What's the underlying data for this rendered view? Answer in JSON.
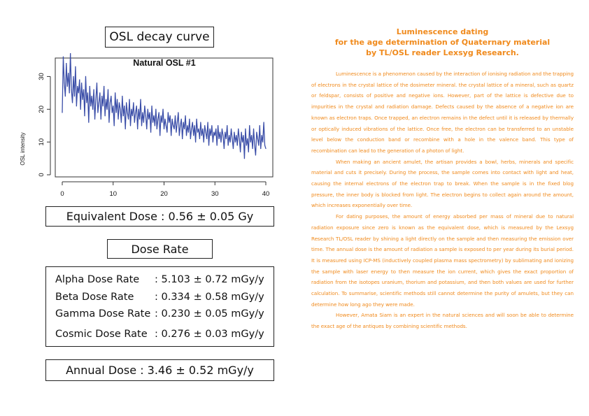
{
  "chart_box_title": "OSL decay curve",
  "chart_data": {
    "type": "line",
    "title": "Natural OSL #1",
    "xlabel": "",
    "ylabel": "OSL intensity",
    "xlim": [
      0,
      40
    ],
    "ylim": [
      0,
      35
    ],
    "xticks": [
      0,
      10,
      20,
      30,
      40
    ],
    "yticks": [
      0,
      10,
      20,
      30
    ],
    "grid": false,
    "series": [
      {
        "color": "#3b4ea8",
        "x": [
          0.0,
          0.2,
          0.4,
          0.6,
          0.8,
          1.0,
          1.2,
          1.4,
          1.6,
          1.8,
          2.0,
          2.2,
          2.4,
          2.6,
          2.8,
          3.0,
          3.2,
          3.4,
          3.6,
          3.8,
          4.0,
          4.2,
          4.4,
          4.6,
          4.8,
          5.0,
          5.2,
          5.4,
          5.6,
          5.8,
          6.0,
          6.2,
          6.4,
          6.6,
          6.8,
          7.0,
          7.2,
          7.4,
          7.6,
          7.8,
          8.0,
          8.2,
          8.4,
          8.6,
          8.8,
          9.0,
          9.2,
          9.4,
          9.6,
          9.8,
          10.0,
          10.2,
          10.4,
          10.6,
          10.8,
          11.0,
          11.2,
          11.4,
          11.6,
          11.8,
          12.0,
          12.2,
          12.4,
          12.6,
          12.8,
          13.0,
          13.2,
          13.4,
          13.6,
          13.8,
          14.0,
          14.2,
          14.4,
          14.6,
          14.8,
          15.0,
          15.2,
          15.4,
          15.6,
          15.8,
          16.0,
          16.2,
          16.4,
          16.6,
          16.8,
          17.0,
          17.2,
          17.4,
          17.6,
          17.8,
          18.0,
          18.2,
          18.4,
          18.6,
          18.8,
          19.0,
          19.2,
          19.4,
          19.6,
          19.8,
          20.0,
          20.2,
          20.4,
          20.6,
          20.8,
          21.0,
          21.2,
          21.4,
          21.6,
          21.8,
          22.0,
          22.2,
          22.4,
          22.6,
          22.8,
          23.0,
          23.2,
          23.4,
          23.6,
          23.8,
          24.0,
          24.2,
          24.4,
          24.6,
          24.8,
          25.0,
          25.2,
          25.4,
          25.6,
          25.8,
          26.0,
          26.2,
          26.4,
          26.6,
          26.8,
          27.0,
          27.2,
          27.4,
          27.6,
          27.8,
          28.0,
          28.2,
          28.4,
          28.6,
          28.8,
          29.0,
          29.2,
          29.4,
          29.6,
          29.8,
          30.0,
          30.2,
          30.4,
          30.6,
          30.8,
          31.0,
          31.2,
          31.4,
          31.6,
          31.8,
          32.0,
          32.2,
          32.4,
          32.6,
          32.8,
          33.0,
          33.2,
          33.4,
          33.6,
          33.8,
          34.0,
          34.2,
          34.4,
          34.6,
          34.8,
          35.0,
          35.2,
          35.4,
          35.6,
          35.8,
          36.0,
          36.2,
          36.4,
          36.6,
          36.8,
          37.0,
          37.2,
          37.4,
          37.6,
          37.8,
          38.0,
          38.2,
          38.4,
          38.6,
          38.8,
          39.0,
          39.2,
          39.4,
          39.6,
          39.8,
          40.0
        ],
        "y": [
          19,
          36,
          28,
          24,
          34,
          27,
          31,
          25,
          37,
          26,
          22,
          30,
          24,
          33,
          21,
          27,
          25,
          29,
          20,
          28,
          23,
          26,
          18,
          30,
          22,
          25,
          16,
          27,
          21,
          24,
          20,
          26,
          17,
          23,
          28,
          19,
          22,
          25,
          17,
          24,
          21,
          27,
          18,
          23,
          20,
          26,
          16,
          22,
          24,
          19,
          21,
          15,
          25,
          19,
          23,
          17,
          22,
          20,
          16,
          24,
          18,
          21,
          14,
          22,
          19,
          17,
          23,
          15,
          20,
          18,
          22,
          16,
          19,
          21,
          14,
          20,
          17,
          23,
          15,
          19,
          16,
          21,
          18,
          14,
          20,
          17,
          19,
          13,
          21,
          16,
          18,
          15,
          20,
          14,
          17,
          19,
          12,
          18,
          16,
          20,
          14,
          17,
          15,
          13,
          19,
          16,
          18,
          12,
          17,
          15,
          14,
          18,
          13,
          16,
          19,
          12,
          15,
          17,
          11,
          16,
          14,
          18,
          12,
          15,
          13,
          17,
          11,
          14,
          16,
          12,
          15,
          10,
          17,
          13,
          14,
          11,
          16,
          12,
          14,
          10,
          15,
          13,
          11,
          16,
          9,
          14,
          12,
          15,
          10,
          13,
          12,
          14,
          9,
          15,
          11,
          13,
          10,
          14,
          12,
          8,
          13,
          11,
          15,
          9,
          12,
          10,
          14,
          11,
          8,
          13,
          10,
          12,
          9,
          14,
          11,
          7,
          13,
          10,
          12,
          5,
          14,
          9,
          11,
          7,
          15,
          10,
          12,
          8,
          14,
          9,
          6,
          13,
          11,
          9,
          15,
          8,
          12,
          10,
          16,
          9,
          8
        ]
      }
    ]
  },
  "equivalent_dose": "Equivalent Dose : 0.56 ±  0.05 Gy",
  "dose_rate_title": "Dose Rate",
  "dose_rates": [
    {
      "label": "Alpha Dose Rate",
      "value": ": 5.103 ±  0.72 mGy/y"
    },
    {
      "label": "Beta Dose Rate",
      "value": ": 0.334 ±  0.58 mGy/y"
    },
    {
      "label": "Gamma Dose Rate",
      "value": ": 0.230 ±  0.05 mGy/y"
    },
    {
      "label": "Cosmic Dose Rate",
      "value": ": 0.276 ± 0.03 mGy/y"
    }
  ],
  "annual_dose": "Annual Dose : 3.46 ±  0.52 mGy/y",
  "article": {
    "color": "#f08a1c",
    "heading": [
      "Luminescence dating",
      "for the age determination of Quaternary material",
      "by TL/OSL reader Lexsyg Research."
    ],
    "paragraphs": [
      "Luminescence is a phenomenon caused by the interaction of ionising radiation and the trapping of electrons in the crystal lattice of the dosimeter mineral. the crystal lattice of a mineral, such as quartz or feldspar, consists of positive and negative ions. However, part of the lattice is defective due to impurities in the crystal and radiation damage. Defects caused by the absence of a negative ion are known as electron traps. Once trapped, an electron remains in the defect until it is released by thermally or optically induced vibrations of the lattice. Once free, the electron can be transferred to an unstable level below the conduction band or recombine with a hole in the valence band. This type of recombination can lead to the generation of a photon of light.",
      "When making an ancient amulet, the artisan provides a bowl, herbs, minerals and specific material and cuts it precisely. During the process, the sample comes into contact with light and heat, causing the internal electrons of the electron trap to break. When the sample is in the fixed blog pressure, the inner body is blocked from light. The electron begins to collect again around the amount, which increases exponentially over time.",
      "For dating purposes, the amount of energy absorbed per mass of mineral due to natural radiation exposure since zero is known as the equivalent dose, which is measured by the Lexsyg Research TL/OSL reader by shining a light directly on the sample and then measuring the emission over time. The annual dose is the amount of radiation a sample is exposed to per year during its burial period. It is measured using ICP-MS (inductively coupled plasma mass spectrometry) by sublimating and ionizing the sample with laser energy to then measure the ion current, which gives the exact proportion of radiation from the isotopes uranium, thorium and potassium, and then both values are used for further calculation. To summarise, scientific methods still cannot determine the purity of amulets, but they can determine how long ago they were made.",
      "However, Amata Siam is an expert in the natural sciences and will soon be able to determine the exact age of the antiques by combining scientific methods."
    ]
  }
}
